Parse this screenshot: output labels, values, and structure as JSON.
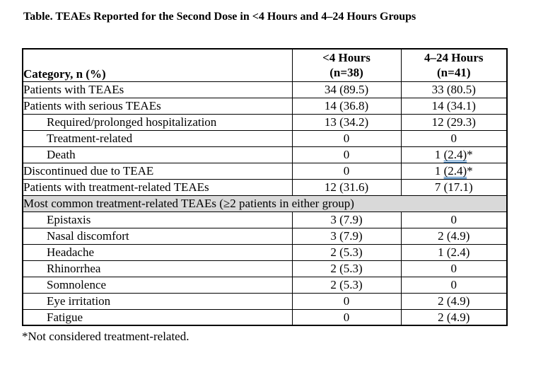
{
  "title": "Table. TEAEs Reported for the Second Dose in <4 Hours and 4–24 Hours Groups",
  "colors": {
    "background": "#FFFFFF",
    "text": "#000000",
    "border": "#000000",
    "section_bg": "#D9D9D9",
    "grammar_underline": "#2E74B5"
  },
  "table": {
    "header": {
      "category": "Category, n (%)",
      "group1_line1": "<4 Hours",
      "group1_line2": "(n=38)",
      "group2_line1": "4–24 Hours",
      "group2_line2": "(n=41)"
    },
    "rows": [
      {
        "category": "Patients with TEAEs",
        "indent": false,
        "cols": [
          "34 (89.5)",
          "33 (80.5)"
        ]
      },
      {
        "category": "Patients with serious TEAEs",
        "indent": false,
        "cols": [
          "14 (36.8)",
          "14 (34.1)"
        ]
      },
      {
        "category": "Required/prolonged hospitalization",
        "indent": true,
        "cols": [
          "13 (34.2)",
          "12 (29.3)"
        ]
      },
      {
        "category": "Treatment-related",
        "indent": true,
        "cols": [
          "0",
          "0"
        ]
      },
      {
        "category": "Death",
        "indent": true,
        "cols": [
          "0",
          {
            "pre": "1 ",
            "underline": "(2.4)",
            "post": "*"
          }
        ]
      },
      {
        "category": "Discontinued due to TEAE",
        "indent": false,
        "cols": [
          "0",
          {
            "pre": "1 ",
            "underline": "(2.4)",
            "post": "*"
          }
        ]
      },
      {
        "category": "Patients with treatment-related TEAEs",
        "indent": false,
        "cols": [
          "12 (31.6)",
          "7 (17.1)"
        ]
      },
      {
        "type": "section",
        "category": "Most common treatment-related TEAEs (≥2 patients in either group)"
      },
      {
        "category": "Epistaxis",
        "indent": true,
        "cols": [
          "3 (7.9)",
          "0"
        ]
      },
      {
        "category": "Nasal discomfort",
        "indent": true,
        "cols": [
          "3 (7.9)",
          "2 (4.9)"
        ]
      },
      {
        "category": "Headache",
        "indent": true,
        "cols": [
          "2 (5.3)",
          "1 (2.4)"
        ]
      },
      {
        "category": "Rhinorrhea",
        "indent": true,
        "cols": [
          "2 (5.3)",
          "0"
        ]
      },
      {
        "category": "Somnolence",
        "indent": true,
        "cols": [
          "2 (5.3)",
          "0"
        ]
      },
      {
        "category": "Eye irritation",
        "indent": true,
        "cols": [
          "0",
          "2 (4.9)"
        ]
      },
      {
        "category": "Fatigue",
        "indent": true,
        "cols": [
          "0",
          "2 (4.9)"
        ]
      }
    ]
  },
  "footnote": "*Not considered treatment-related."
}
